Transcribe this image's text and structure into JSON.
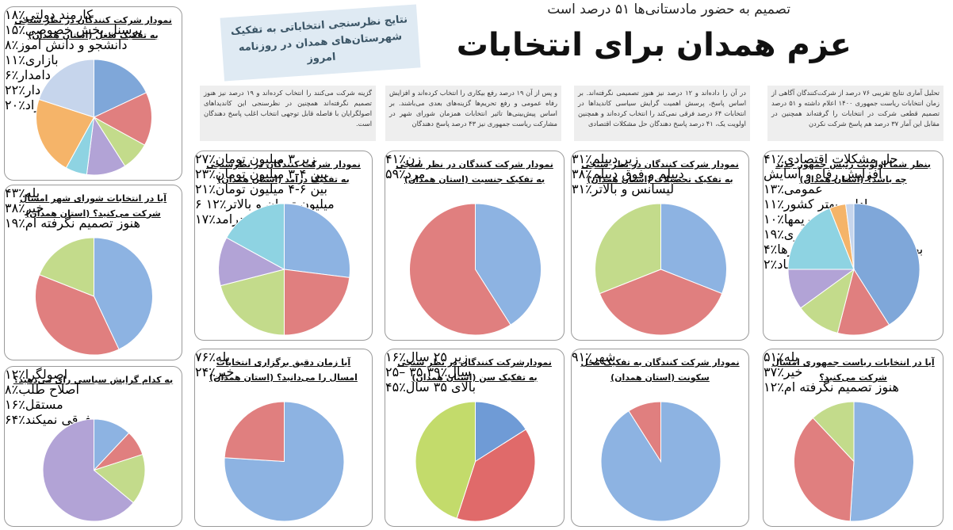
{
  "header": {
    "subtitle": "تصمیم به حضور مادستانی‌ها ۵۱ درصد است",
    "title": "عزم همدان برای انتخابات",
    "banner": "نتایج نظرسنجی انتخاباتی به تفکیک شهرستان‌های همدان در روزنامه امروز"
  },
  "intro": [
    "تحلیل آماری نتایج تقریبی ۷۶ درصد از شرکت‌کنندگان آگاهی از زمان انتخابات ریاست جمهوری ۱۴۰۰ اعلام داشته و ۵۱ درصد تصمیم قطعی شرکت در انتخابات را گرفته‌اند همچنین در مقابل این آمار ۳۷ درصد هم پاسخ شرکت نکردن",
    "در آن را داده‌اند و ۱۲ درصد نیز هنوز تصمیمی نگرفته‌اند. بر اساس پاسخ، پرسش اهمیت گرایش سیاسی کاندیداها در انتخابات ۶۴ درصد فرقی نمی‌کند را انتخاب کرده‌اند و همچنین اولویت یک، ۴۱ درصد پاسخ دهندگان حل مشکلات اقتصادی",
    "و پس از آن ۱۹ درصد رفع بیکاری را انتخاب کرده‌اند و افزایش رفاه عمومی و رفع تحریم‌ها گزینه‌های بعدی می‌باشند. بر اساس پیش‌بینی‌ها تاثیر انتخابات همزمان شورای شهر در مشارکت ریاست جمهوری نیز ۴۳ درصد پاسخ دهندگان",
    "گزینه شرکت می‌کنند را انتخاب کرده‌اند و ۱۹ درصد نیز هنوز تصمیم نگرفته‌اند همچنین در نظرسنجی این کاندیداهای اصولگرایان با فاصله قابل توجهی انتخاب اغلب پاسخ دهندگان است."
  ],
  "chart_data": [
    {
      "type": "pie",
      "title": "نمودار شرکت کنندگان در نظر سنجی به تفکیک شغل (استان همدان)",
      "categories": [
        "کارمند دولتی",
        "پرسنل بخش خصوصی",
        "دانشجو و دانش آموز",
        "بازاری",
        "کشاورز و دامدار",
        "خانه دار",
        "آزاد"
      ],
      "values": [
        18,
        15,
        8,
        11,
        6,
        22,
        20
      ],
      "value_labels": [
        "٪۱۸",
        "٪۱۵",
        "٪۸",
        "٪۱۱",
        "٪۶",
        "٪۲۲",
        "٪۲۰"
      ],
      "colors": [
        "#7fa7d9",
        "#e07f7f",
        "#c3db8b",
        "#b2a3d6",
        "#8ed3e2",
        "#f5b469",
        "#c6d5ec"
      ]
    },
    {
      "type": "pie",
      "title": "آیا در انتخابات شورای شهر امسال شرکت می‌کنید؟ (استان همدان)",
      "categories": [
        "بله",
        "خیر",
        "هنوز تصمیم نگرفته ام"
      ],
      "values": [
        43,
        38,
        19
      ],
      "value_labels": [
        "٪۴۳",
        "٪۳۸",
        "٪۱۹"
      ],
      "colors": [
        "#8db3e2",
        "#e07f7f",
        "#c3db8b"
      ]
    },
    {
      "type": "pie",
      "title": "به کدام گرایش سیاسی رای می‌دهید؟",
      "categories": [
        "اصولگرا",
        "اصلاح طلب",
        "مستقل",
        "فرقی نمیکند"
      ],
      "values": [
        12,
        8,
        16,
        64
      ],
      "value_labels": [
        "٪۱۲",
        "٪۸",
        "٪۱۶",
        "٪۶۴"
      ],
      "colors": [
        "#8db3e2",
        "#e07f7f",
        "#c3db8b",
        "#b2a3d6"
      ]
    },
    {
      "type": "pie",
      "title": "نمودار شرکت کنندگان در نظرسنجی به تفکیک درآمد (استان همدان)",
      "categories": [
        "زیر ۳ میلیون تومان",
        "بین ۴-۳ میلیون تومان",
        "بین ۶-۴ میلیون تومان",
        "۶ میلیون تومان و بالاتر",
        "بدون درامد"
      ],
      "values": [
        27,
        23,
        21,
        12,
        17
      ],
      "value_labels": [
        "٪۲۷",
        "٪۲۳",
        "٪۲۱",
        "٪۱۲",
        "٪۱۷"
      ],
      "colors": [
        "#8db3e2",
        "#e07f7f",
        "#c3db8b",
        "#b2a3d6",
        "#8ed3e2"
      ]
    },
    {
      "type": "pie",
      "title": "نمودار شرکت کنندگان در نظر سنجی به تفکیک جنسیت (استان همدان)",
      "categories": [
        "زن",
        "مرد"
      ],
      "values": [
        41,
        59
      ],
      "value_labels": [
        "٪۴۱",
        "٪۵۹"
      ],
      "colors": [
        "#8db3e2",
        "#e07f7f"
      ]
    },
    {
      "type": "pie",
      "title": "نمودار شرکت کنندگان در نظر سنجی به تفکیک تحصیلات (استان همدان)",
      "categories": [
        "زیر دیپلم",
        "دیپلم و فوق دیپلم",
        "لیسانس و بالاتر"
      ],
      "values": [
        31,
        38,
        31
      ],
      "value_labels": [
        "٪۳۱",
        "٪۳۸",
        "٪۳۱"
      ],
      "colors": [
        "#8db3e2",
        "#e07f7f",
        "#c3db8b"
      ]
    },
    {
      "type": "pie",
      "title": "بنظر شما اولویت رئیس جمهور جدید چه باشد؟ (استان همدان)",
      "categories": [
        "حل مشکلات اقتصادی",
        "افزایش رفاه و آسایش عمومی",
        "اداره بهتر کشور",
        "رفع تحریمها",
        "رفع بیکاری",
        "بهبود روابط با سایر کشورها",
        "مبارزه با تبعیض و فساد"
      ],
      "values": [
        41,
        13,
        11,
        10,
        19,
        4,
        2
      ],
      "value_labels": [
        "٪۴۱",
        "٪۱۳",
        "٪۱۱",
        "٪۱۰",
        "٪۱۹",
        "٪۴",
        "٪۲"
      ],
      "colors": [
        "#7fa7d9",
        "#e07f7f",
        "#c3db8b",
        "#b2a3d6",
        "#8ed3e2",
        "#f5b469",
        "#c6d5ec"
      ]
    },
    {
      "type": "pie",
      "title": "آیا زمان دقیق برگزاری انتخابات امسال را می‌دانید؟ (استان همدان)",
      "categories": [
        "بله",
        "خیر"
      ],
      "values": [
        76,
        24
      ],
      "value_labels": [
        "٪۷۶",
        "٪۲۴"
      ],
      "colors": [
        "#8db3e2",
        "#e07f7f"
      ]
    },
    {
      "type": "pie",
      "title": "نمودارشرکت کنندگان در نظر سنجی به تفکیک سن (استان همدان)",
      "categories": [
        "زیر ۲۵ سال",
        "۲۵– ۳۵ سال",
        "بالای ۳۵ سال"
      ],
      "values": [
        16,
        39,
        45
      ],
      "value_labels": [
        "٪۱۶",
        "٪۳۹",
        "٪۴۵"
      ],
      "colors": [
        "#6f9bd6",
        "#e06a6a",
        "#c3db6b"
      ]
    },
    {
      "type": "pie",
      "title": "نمودار شرکت کنندگان به تفکیک محل سکونت (استان همدان)",
      "categories": [
        "شهر",
        null
      ],
      "values": [
        91,
        9
      ],
      "value_labels": [
        "٪۹۱",
        null
      ],
      "colors": [
        "#8db3e2",
        "#e07f7f"
      ]
    },
    {
      "type": "pie",
      "title": "آیا در انتخابات ریاست جمهوری امسال شرکت می‌کنید؟",
      "categories": [
        "بله",
        "خیر",
        "هنوز تصمیم نگرفته ام"
      ],
      "values": [
        51,
        37,
        12
      ],
      "value_labels": [
        "٪۵۱",
        "٪۳۷",
        "٪۱۲"
      ],
      "colors": [
        "#8db3e2",
        "#e07f7f",
        "#c3db8b"
      ]
    }
  ]
}
